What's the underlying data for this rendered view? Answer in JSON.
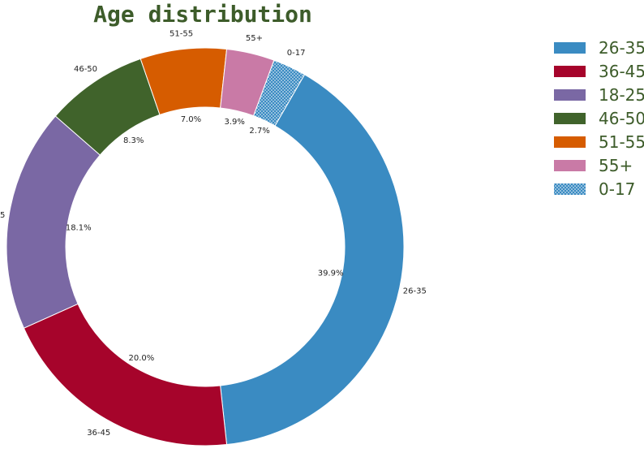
{
  "chart_data": {
    "type": "pie",
    "title": "Age distribution",
    "donut": true,
    "start_angle_deg": 60,
    "direction": "clockwise",
    "categories": [
      "26-35",
      "36-45",
      "18-25",
      "46-50",
      "51-55",
      "55+",
      "0-17"
    ],
    "values": [
      39.9,
      20.0,
      18.1,
      8.3,
      7.0,
      3.9,
      2.7
    ],
    "value_labels": [
      "39.9%",
      "20.0%",
      "18.1%",
      "8.3%",
      "7.0%",
      "3.9%",
      "2.7%"
    ],
    "colors": [
      "#3a8bc2",
      "#a6042b",
      "#7a68a4",
      "#40632b",
      "#d65c00",
      "#c97aa6",
      "#3a8bc2"
    ],
    "hatched": [
      false,
      false,
      false,
      false,
      false,
      false,
      true
    ],
    "legend": {
      "placement": "top-right",
      "entries": [
        "26-35",
        "36-45",
        "18-25",
        "46-50",
        "51-55",
        "55+",
        "0-17"
      ]
    }
  }
}
